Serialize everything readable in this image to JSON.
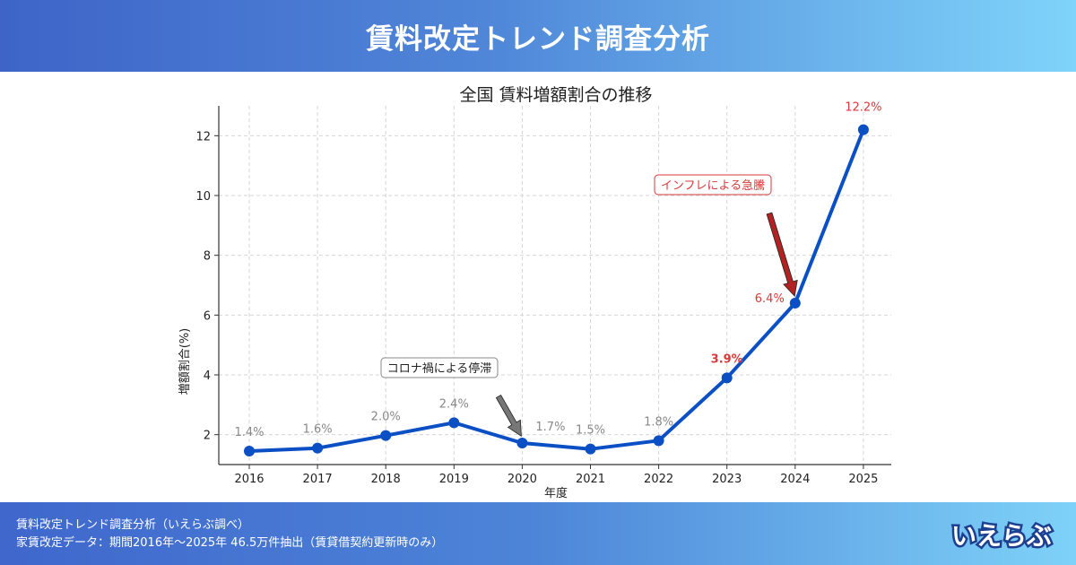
{
  "header": {
    "title": "賃料改定トレンド調査分析"
  },
  "chart_data": {
    "type": "line",
    "title": "全国 賃料増額割合の推移",
    "xlabel": "年度",
    "ylabel": "増額割合(%)",
    "categories": [
      "2016",
      "2017",
      "2018",
      "2019",
      "2020",
      "2021",
      "2022",
      "2023",
      "2024",
      "2025"
    ],
    "values": [
      1.45,
      1.55,
      1.97,
      2.4,
      1.72,
      1.52,
      1.8,
      3.9,
      6.4,
      12.2
    ],
    "data_labels": [
      "1.4%",
      "1.6%",
      "2.0%",
      "2.4%",
      "1.7%",
      "1.5%",
      "1.8%",
      "3.9%",
      "6.4%",
      "12.2%"
    ],
    "yticks": [
      "2",
      "4",
      "6",
      "8",
      "10",
      "12"
    ],
    "ylim": [
      1,
      13
    ],
    "grid": true,
    "series_color": "#0a4fc4",
    "label_color_normal": "#888888",
    "label_color_highlight": "#d63a3a",
    "annotations": [
      {
        "text": "コロナ禍による停滞",
        "target_index": 4,
        "style": "gray"
      },
      {
        "text": "インフレによる急騰",
        "target_index": 8,
        "style": "red"
      }
    ]
  },
  "footer": {
    "line1": "賃料改定トレンド調査分析（いえらぶ調べ）",
    "line2": "家賃改定データ：期間2016年〜2025年 46.5万件抽出（賃貸借契約更新時のみ）",
    "logo_text": "いえらぶ"
  }
}
